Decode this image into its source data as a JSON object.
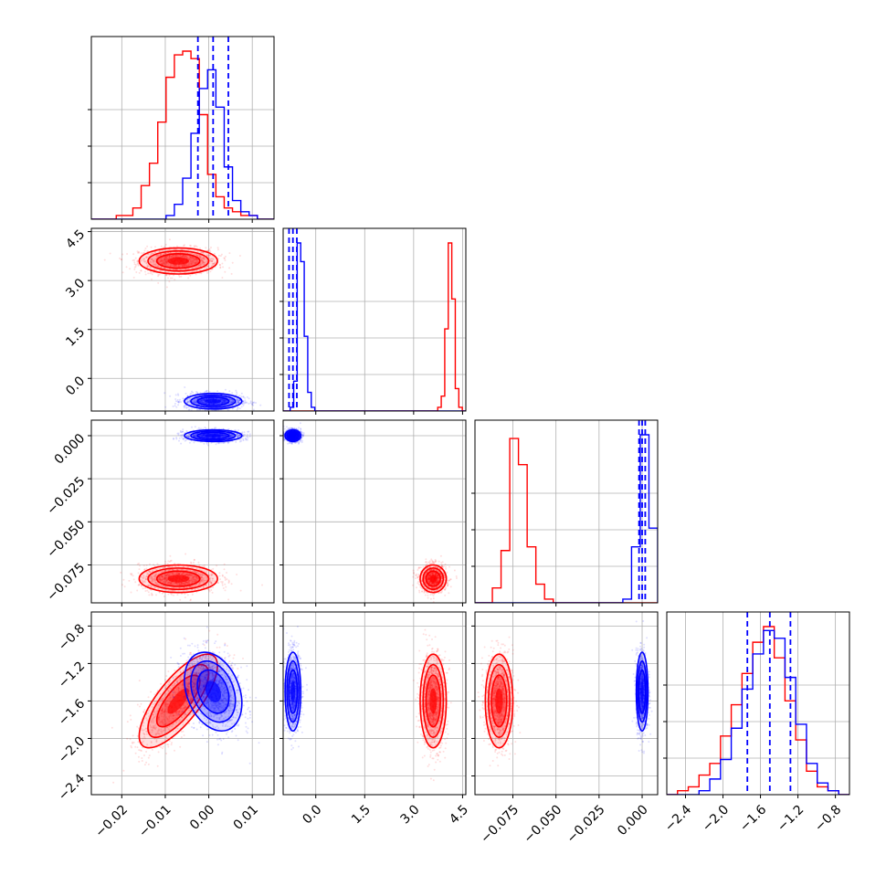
{
  "colors": {
    "series_a": "#ff0000",
    "series_b": "#0000ff",
    "grid": "#b0b0b0",
    "axis": "#000000"
  },
  "chart_data": {
    "type": "corner",
    "grid": true,
    "legend": "none",
    "parameters": [
      {
        "range": [
          -0.027,
          0.015
        ],
        "ticks": [
          -0.02,
          -0.01,
          0.0,
          0.01
        ],
        "tick_labels": [
          "−0.02",
          "−0.01",
          "0.00",
          "0.01"
        ]
      },
      {
        "range": [
          -1.0,
          4.6
        ],
        "ticks": [
          0.0,
          1.5,
          3.0,
          4.5
        ],
        "tick_labels": [
          "0.0",
          "1.5",
          "3.0",
          "4.5"
        ]
      },
      {
        "range": [
          -0.097,
          0.009
        ],
        "ticks": [
          -0.075,
          -0.05,
          -0.025,
          0.0
        ],
        "tick_labels": [
          "−0.075",
          "−0.050",
          "−0.025",
          "0.000"
        ]
      },
      {
        "range": [
          -2.6,
          -0.65
        ],
        "ticks": [
          -2.4,
          -2.0,
          -1.6,
          -1.2,
          -0.8
        ],
        "tick_labels": [
          "−2.4",
          "−2.0",
          "−1.6",
          "−1.2",
          "−0.8"
        ]
      }
    ],
    "series": [
      {
        "color": "#ff0000",
        "means": [
          -0.007,
          3.6,
          -0.083,
          -1.6
        ],
        "stds": [
          0.0045,
          0.2,
          0.004,
          0.25
        ],
        "correlations": [
          [
            0,
            3,
            0.75
          ]
        ],
        "histograms": [
          [
            0,
            0,
            0,
            1,
            1,
            3,
            9,
            15,
            26,
            38,
            44,
            45,
            43,
            28,
            12,
            6,
            3,
            2,
            1,
            1,
            0,
            0
          ],
          [
            0,
            0,
            0,
            0,
            0,
            0,
            0,
            0,
            0,
            0,
            0,
            0,
            0,
            0,
            0,
            0,
            0,
            0,
            0,
            0,
            0,
            0,
            0,
            0,
            0,
            0,
            0,
            0,
            0,
            0,
            0,
            0,
            0,
            0,
            0,
            0,
            0,
            0,
            0,
            0,
            0,
            0,
            0,
            0,
            1,
            4,
            22,
            45,
            30,
            6,
            1,
            0
          ],
          [
            0,
            0,
            4,
            14,
            44,
            37,
            15,
            5,
            1,
            0,
            0,
            0,
            0,
            0,
            0,
            0,
            0,
            0,
            0,
            0,
            0
          ],
          [
            0,
            1,
            2,
            5,
            8,
            15,
            23,
            31,
            39,
            43,
            35,
            24,
            14,
            6,
            2,
            1,
            0
          ]
        ]
      },
      {
        "color": "#0000ff",
        "means": [
          0.001,
          -0.7,
          0.0,
          -1.5
        ],
        "stds": [
          0.0033,
          0.12,
          0.0017,
          0.21
        ],
        "correlations": [
          [
            0,
            3,
            -0.3
          ]
        ],
        "histograms": [
          [
            0,
            0,
            0,
            0,
            0,
            0,
            0,
            0,
            0,
            1,
            4,
            11,
            23,
            35,
            40,
            30,
            14,
            5,
            2,
            1,
            0,
            0
          ],
          [
            0,
            0,
            1,
            8,
            45,
            40,
            20,
            5,
            1,
            0,
            0,
            0,
            0,
            0,
            0,
            0,
            0,
            0,
            0,
            0,
            0,
            0,
            0,
            0,
            0,
            0,
            0,
            0,
            0,
            0,
            0,
            0,
            0,
            0,
            0,
            0,
            0,
            0,
            0,
            0,
            0,
            0,
            0,
            0,
            0,
            0,
            0,
            0,
            0,
            0,
            0,
            0
          ],
          [
            0,
            0,
            0,
            0,
            0,
            0,
            0,
            0,
            0,
            0,
            0,
            0,
            0,
            0,
            0,
            0,
            0,
            1,
            15,
            45,
            20
          ],
          [
            0,
            0,
            0,
            1,
            4,
            9,
            17,
            27,
            36,
            42,
            40,
            30,
            18,
            8,
            3,
            1,
            0
          ]
        ],
        "quantile_lines": [
          [
            -0.0025,
            0.001,
            0.0045
          ],
          [
            -0.82,
            -0.7,
            -0.58
          ],
          [
            -0.0018,
            0.0,
            0.0018
          ],
          [
            -1.74,
            -1.5,
            -1.28
          ]
        ]
      }
    ]
  }
}
